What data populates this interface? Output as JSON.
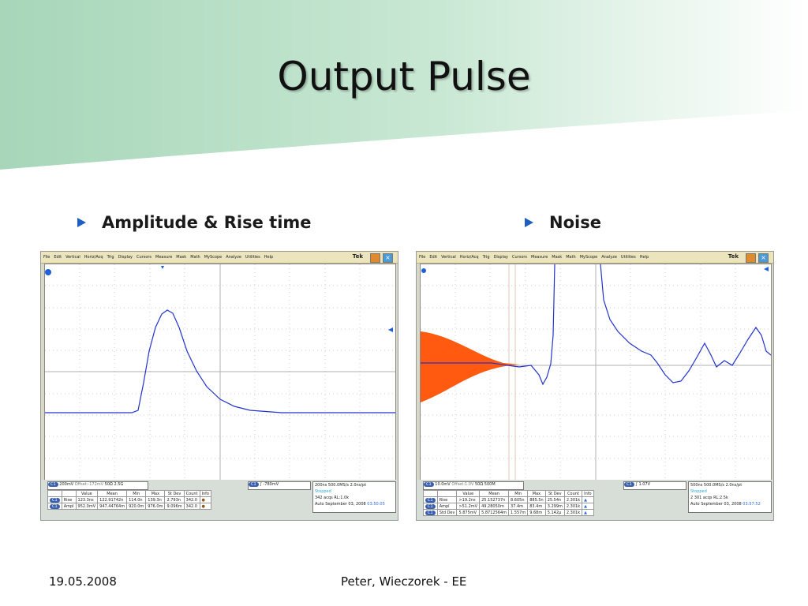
{
  "slide": {
    "title": "Output Pulse",
    "bullets": [
      "Amplitude & Rise time",
      "Noise"
    ],
    "footer_date": "19.05.2008",
    "footer_author": "Peter, Wieczorek - EE",
    "colors": {
      "band_top": "#a8d8bc",
      "bullet_marker": "#1f5fbf",
      "trace_blue": "#2233cc",
      "histogram_orange": "#ff5a10"
    }
  },
  "scope_left": {
    "menu": [
      "File",
      "Edit",
      "Vertical",
      "Horiz/Acq",
      "Trig",
      "Display",
      "Cursors",
      "Measure",
      "Mask",
      "Math",
      "MyScope",
      "Analyze",
      "Utilities",
      "Help"
    ],
    "brand": "Tek",
    "channel": {
      "badge": "C1",
      "scale": "200mV",
      "offset": "Offset:-172mV",
      "coupling": "50Ω",
      "bw": "2.5G"
    },
    "trigger": {
      "badge": "C1",
      "level": "-780mV"
    },
    "timebase": {
      "scale": "200ns",
      "rate": "500.0MS/s",
      "res": "2.0ns/pt",
      "state": "Stopped",
      "acqs": "342 acqs",
      "rl": "RL:1.0k",
      "mode": "Auto",
      "date": "September 03, 2008",
      "time": "03:50:05"
    },
    "table": {
      "headers": [
        "",
        "",
        "Value",
        "Mean",
        "Min",
        "Max",
        "St Dev",
        "Count",
        "Info"
      ],
      "rows": [
        [
          "C1",
          "Rise",
          "123.3ns",
          "122.91742n",
          "114.0n",
          "139.3n",
          "2.793n",
          "342.0",
          ""
        ],
        [
          "C1",
          "Ampl",
          "952.0mV",
          "947.44764m",
          "920.0m",
          "976.0m",
          "9.096m",
          "342.0",
          ""
        ]
      ]
    }
  },
  "scope_right": {
    "menu": [
      "File",
      "Edit",
      "Vertical",
      "Horiz/Acq",
      "Trig",
      "Display",
      "Cursors",
      "Measure",
      "Mask",
      "Math",
      "MyScope",
      "Analyze",
      "Utilities",
      "Help"
    ],
    "brand": "Tek",
    "channel": {
      "badge": "C1",
      "scale": "10.0mV",
      "offset": "Offset:1.0V",
      "coupling": "50Ω",
      "bw": "500M"
    },
    "trigger": {
      "badge": "C1",
      "level": "1.07V"
    },
    "timebase": {
      "scale": "500ns",
      "rate": "500.0MS/s",
      "res": "2.0ns/pt",
      "state": "Stopped",
      "acqs": "2 301 acqs",
      "rl": "RL:2.5k",
      "mode": "Auto",
      "date": "September 03, 2008",
      "time": "03:57:52"
    },
    "table": {
      "headers": [
        "",
        "",
        "Value",
        "Mean",
        "Min",
        "Max",
        "St Dev",
        "Count",
        "Info"
      ],
      "rows": [
        [
          "C1",
          "Rise",
          ">19.2ns",
          "25.152737n",
          "8.605n",
          "885.5n",
          "25.54n",
          "2.301k",
          ""
        ],
        [
          "C1",
          "Ampl",
          ">51.2mV",
          "49.28050m",
          "37.4m",
          "83.4m",
          "3.299m",
          "2.301k",
          ""
        ],
        [
          "C1",
          "Std Dev",
          "5.875mV",
          "5.8712564m",
          "1.557m",
          "9.68m",
          "5.142μ",
          "2.301k",
          ""
        ]
      ]
    }
  }
}
